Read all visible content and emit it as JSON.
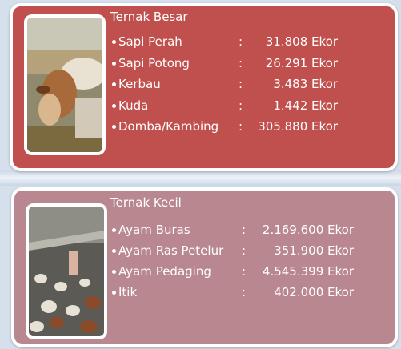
{
  "separator": ":",
  "sections": [
    {
      "title": "Ternak Besar",
      "items": [
        {
          "name": "Sapi Perah",
          "value": "31.808 Ekor"
        },
        {
          "name": "Sapi Potong",
          "value": "26.291 Ekor"
        },
        {
          "name": "Kerbau",
          "value": "3.483 Ekor"
        },
        {
          "name": "Kuda",
          "value": "1.442 Ekor"
        },
        {
          "name": "Domba/Kambing",
          "value": "305.880 Ekor"
        }
      ]
    },
    {
      "title": "Ternak Kecil",
      "items": [
        {
          "name": "Ayam Buras",
          "value": "2.169.600 Ekor"
        },
        {
          "name": "Ayam Ras Petelur",
          "value": "351.900 Ekor"
        },
        {
          "name": "Ayam Pedaging",
          "value": "4.545.399 Ekor"
        },
        {
          "name": "Itik",
          "value": "402.000 Ekor"
        }
      ]
    }
  ]
}
